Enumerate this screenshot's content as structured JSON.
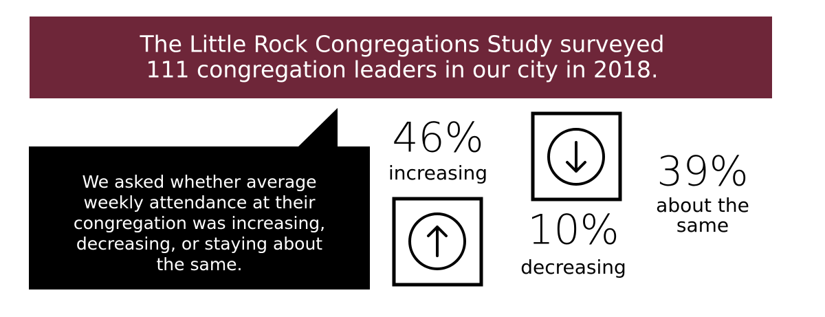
{
  "header": {
    "title_lines": [
      "The Little Rock Congregations Study surveyed",
      "111 congregation leaders in our city in 2018."
    ]
  },
  "callout": {
    "lines": [
      "We asked whether average",
      "weekly attendance at their",
      "congregation was increasing,",
      "decreasing, or staying about",
      "the same."
    ]
  },
  "stats": [
    {
      "value": "46%",
      "label_lines": [
        "increasing"
      ]
    },
    {
      "value": "10%",
      "label_lines": [
        "decreasing"
      ]
    },
    {
      "value": "39%",
      "label_lines": [
        "about the",
        "same"
      ]
    }
  ]
}
